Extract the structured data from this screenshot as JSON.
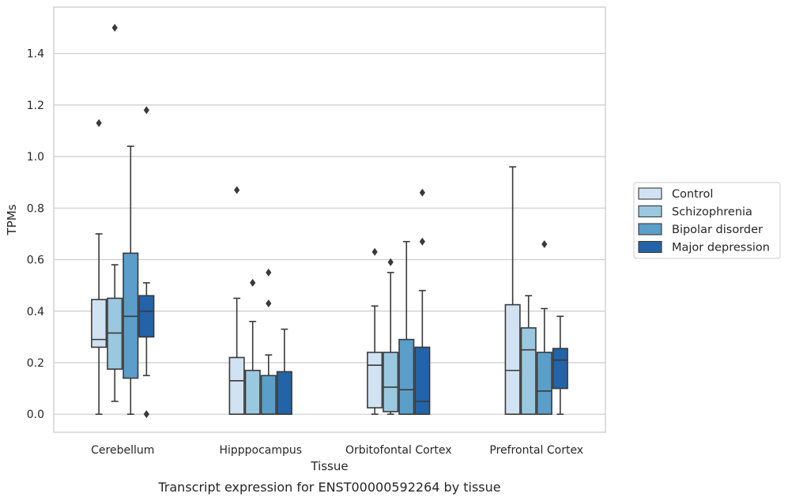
{
  "chart_data": {
    "type": "boxplot",
    "xlabel": "Tissue",
    "ylabel": "TPMs",
    "caption": "Transcript expression for ENST00000592264 by tissue",
    "ylim": [
      -0.07,
      1.58
    ],
    "yticks": [
      "0.0",
      "0.2",
      "0.4",
      "0.6",
      "0.8",
      "1.0",
      "1.2",
      "1.4"
    ],
    "grid": true,
    "legend_position": "right",
    "categories": [
      "Cerebellum",
      "Hipppocampus",
      "Orbitofontal Cortex",
      "Prefrontal Cortex"
    ],
    "series": [
      {
        "name": "Control",
        "color": "#d1e2f2",
        "boxes": [
          {
            "whislo": 0.0,
            "q1": 0.26,
            "med": 0.29,
            "q3": 0.445,
            "whishi": 0.7,
            "fliers": [
              1.13
            ]
          },
          {
            "whislo": 0.0,
            "q1": 0.0,
            "med": 0.13,
            "q3": 0.22,
            "whishi": 0.45,
            "fliers": [
              0.87
            ]
          },
          {
            "whislo": 0.0,
            "q1": 0.025,
            "med": 0.19,
            "q3": 0.24,
            "whishi": 0.42,
            "fliers": [
              0.63
            ]
          },
          {
            "whislo": 0.0,
            "q1": 0.0,
            "med": 0.17,
            "q3": 0.425,
            "whishi": 0.96,
            "fliers": []
          }
        ]
      },
      {
        "name": "Schizophrenia",
        "color": "#9ac8e0",
        "boxes": [
          {
            "whislo": 0.05,
            "q1": 0.175,
            "med": 0.315,
            "q3": 0.45,
            "whishi": 0.58,
            "fliers": [
              1.5
            ]
          },
          {
            "whislo": 0.0,
            "q1": 0.0,
            "med": 0.0,
            "q3": 0.17,
            "whishi": 0.36,
            "fliers": [
              0.51
            ]
          },
          {
            "whislo": 0.0,
            "q1": 0.01,
            "med": 0.105,
            "q3": 0.24,
            "whishi": 0.55,
            "fliers": [
              0.59
            ]
          },
          {
            "whislo": 0.0,
            "q1": 0.0,
            "med": 0.25,
            "q3": 0.335,
            "whishi": 0.46,
            "fliers": []
          }
        ]
      },
      {
        "name": "Bipolar disorder",
        "color": "#5a9ec9",
        "boxes": [
          {
            "whislo": 0.0,
            "q1": 0.14,
            "med": 0.38,
            "q3": 0.625,
            "whishi": 1.04,
            "fliers": []
          },
          {
            "whislo": 0.0,
            "q1": 0.0,
            "med": 0.0,
            "q3": 0.15,
            "whishi": 0.23,
            "fliers": [
              0.55,
              0.43
            ]
          },
          {
            "whislo": 0.0,
            "q1": 0.0,
            "med": 0.095,
            "q3": 0.29,
            "whishi": 0.67,
            "fliers": []
          },
          {
            "whislo": 0.0,
            "q1": 0.0,
            "med": 0.09,
            "q3": 0.24,
            "whishi": 0.41,
            "fliers": [
              0.66
            ]
          }
        ]
      },
      {
        "name": "Major depression",
        "color": "#2363a7",
        "boxes": [
          {
            "whislo": 0.15,
            "q1": 0.3,
            "med": 0.4,
            "q3": 0.46,
            "whishi": 0.51,
            "fliers": [
              1.18,
              0.0
            ]
          },
          {
            "whislo": 0.0,
            "q1": 0.0,
            "med": 0.0,
            "q3": 0.165,
            "whishi": 0.33,
            "fliers": []
          },
          {
            "whislo": 0.0,
            "q1": 0.0,
            "med": 0.05,
            "q3": 0.26,
            "whishi": 0.48,
            "fliers": [
              0.86,
              0.67
            ]
          },
          {
            "whislo": 0.0,
            "q1": 0.1,
            "med": 0.21,
            "q3": 0.255,
            "whishi": 0.38,
            "fliers": []
          }
        ]
      }
    ]
  }
}
